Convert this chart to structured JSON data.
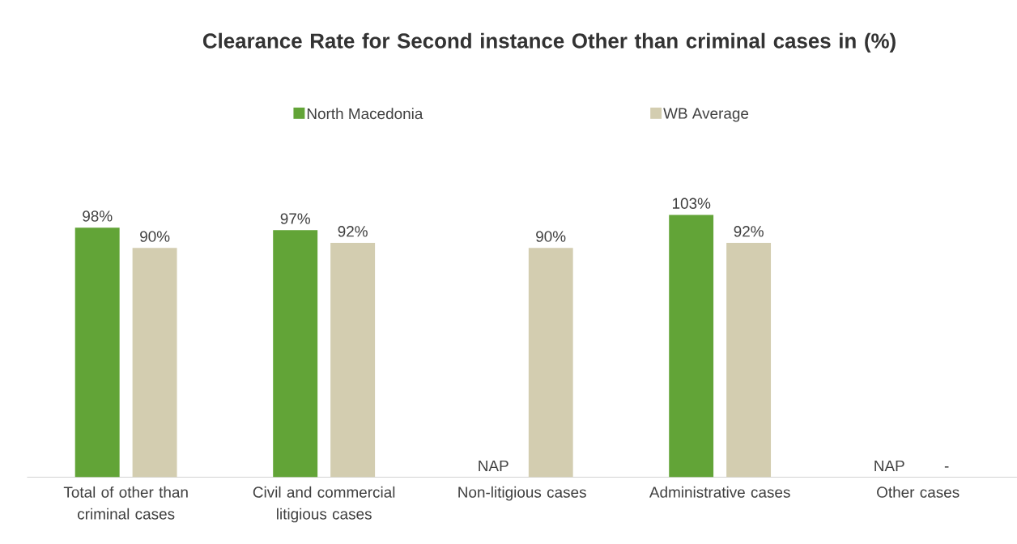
{
  "chart_data": {
    "type": "bar",
    "title": "Clearance Rate for Second instance Other than criminal cases in (%)",
    "categories": [
      "Total of other than criminal cases",
      "Civil and commercial litigious cases",
      "Non-litigious cases",
      "Administrative cases",
      "Other cases"
    ],
    "series": [
      {
        "name": "North Macedonia",
        "color": "#62a437",
        "values": [
          98,
          97,
          null,
          103,
          null
        ],
        "value_labels": [
          "98%",
          "97%",
          "NAP",
          "103%",
          "NAP"
        ]
      },
      {
        "name": "WB Average",
        "color": "#d3cdb0",
        "values": [
          90,
          92,
          90,
          92,
          null
        ],
        "value_labels": [
          "90%",
          "92%",
          "90%",
          "92%",
          "-"
        ]
      }
    ],
    "tick_labels": "x",
    "legend": "top"
  }
}
